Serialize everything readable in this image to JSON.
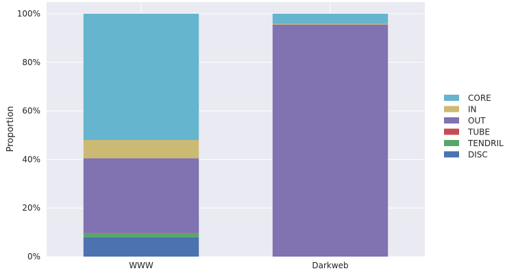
{
  "chart_data": {
    "type": "bar",
    "stacked": true,
    "normalized": true,
    "categories": [
      "WWW",
      "Darkweb"
    ],
    "ylabel": "Proportion",
    "xlabel": "",
    "ylim": [
      0,
      100
    ],
    "yticks": [
      0,
      20,
      40,
      60,
      80,
      100
    ],
    "ytick_labels": [
      "0%",
      "20%",
      "40%",
      "60%",
      "80%",
      "100%"
    ],
    "grid": true,
    "legend_position": "right",
    "series": [
      {
        "name": "DISC",
        "color": "#4c72b0",
        "values": [
          8.0,
          0.0
        ]
      },
      {
        "name": "TENDRIL",
        "color": "#55a868",
        "values": [
          1.5,
          0.0
        ]
      },
      {
        "name": "TUBE",
        "color": "#c44e52",
        "values": [
          0.2,
          0.0
        ]
      },
      {
        "name": "OUT",
        "color": "#8172b2",
        "values": [
          30.8,
          95.5
        ]
      },
      {
        "name": "IN",
        "color": "#ccb974",
        "values": [
          7.5,
          0.3
        ]
      },
      {
        "name": "CORE",
        "color": "#64b5cd",
        "values": [
          52.0,
          4.2
        ]
      }
    ],
    "legend_order": [
      "CORE",
      "IN",
      "OUT",
      "TUBE",
      "TENDRIL",
      "DISC"
    ]
  }
}
